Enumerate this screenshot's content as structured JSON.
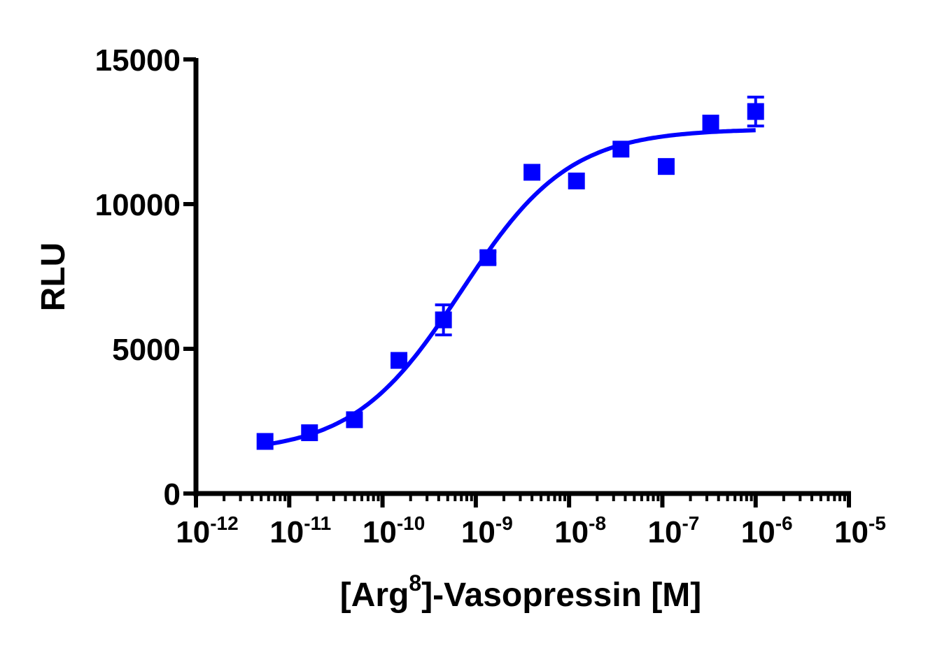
{
  "chart_data": {
    "type": "scatter",
    "title": "",
    "xlabel_prefix": "[Arg",
    "xlabel_sup": "8",
    "xlabel_suffix": "]-Vasopressin [M]",
    "ylabel": "RLU",
    "x_scale": "log",
    "xlim": [
      1e-12,
      1e-05
    ],
    "ylim": [
      0,
      15000
    ],
    "x_ticks": [
      {
        "base": "10",
        "exp": "-12"
      },
      {
        "base": "10",
        "exp": "-11"
      },
      {
        "base": "10",
        "exp": "-10"
      },
      {
        "base": "10",
        "exp": "-9"
      },
      {
        "base": "10",
        "exp": "-8"
      },
      {
        "base": "10",
        "exp": "-7"
      },
      {
        "base": "10",
        "exp": "-6"
      },
      {
        "base": "10",
        "exp": "-5"
      }
    ],
    "y_ticks": [
      "0",
      "5000",
      "10000",
      "15000"
    ],
    "grid": false,
    "color": "#0000ff",
    "marker": "square",
    "points": [
      {
        "x": 5.5e-12,
        "y": 1800,
        "err": 0
      },
      {
        "x": 1.65e-11,
        "y": 2100,
        "err": 0
      },
      {
        "x": 5e-11,
        "y": 2550,
        "err": 0
      },
      {
        "x": 1.5e-10,
        "y": 4600,
        "err": 150
      },
      {
        "x": 4.5e-10,
        "y": 6000,
        "err": 520
      },
      {
        "x": 1.35e-09,
        "y": 8150,
        "err": 200
      },
      {
        "x": 4e-09,
        "y": 11100,
        "err": 0
      },
      {
        "x": 1.2e-08,
        "y": 10800,
        "err": 0
      },
      {
        "x": 3.6e-08,
        "y": 11900,
        "err": 0
      },
      {
        "x": 1.1e-07,
        "y": 11300,
        "err": 0
      },
      {
        "x": 3.3e-07,
        "y": 12800,
        "err": 0
      },
      {
        "x": 1e-06,
        "y": 13200,
        "err": 500
      }
    ],
    "fit": {
      "model": "sigmoidal dose-response",
      "bottom": 1400,
      "top": 12600,
      "ec50": 7e-10,
      "hill": 0.75,
      "x_range": [
        5.5e-12,
        1e-06
      ]
    }
  }
}
